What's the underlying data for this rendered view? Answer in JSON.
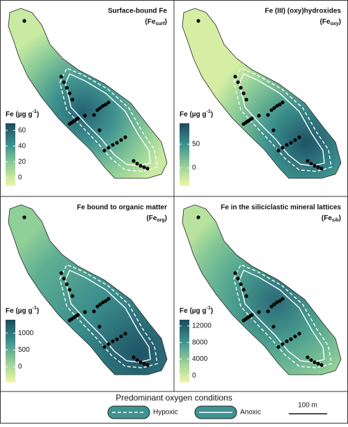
{
  "panels": [
    {
      "title": "Surface-bound Fe",
      "symbol": "(Fe",
      "subscript": "surf",
      "symbol_end": ")",
      "cbar_label": "Fe (µg g",
      "cbar_sup": "-1",
      "cbar_end": ")",
      "cbar_lim": [
        -11,
        69
      ],
      "cbar_ticks": [
        0,
        20,
        40,
        60
      ]
    },
    {
      "title": "Fe (III) (oxy)hydroxides",
      "symbol": "(Fe",
      "subscript": "oxy",
      "symbol_end": ")",
      "cbar_label": "Fe (µg g",
      "cbar_sup": "-1",
      "cbar_end": ")",
      "cbar_lim": [
        -38,
        94
      ],
      "cbar_ticks": [
        0,
        50
      ]
    },
    {
      "title": "Fe bound to organic matter",
      "symbol": "(Fe",
      "subscript": "org",
      "symbol_end": ")",
      "cbar_label": "Fe (µg g",
      "cbar_sup": "-1",
      "cbar_end": ")",
      "cbar_lim": [
        -470,
        1400
      ],
      "cbar_ticks": [
        0,
        500,
        1000
      ]
    },
    {
      "title": "Fe in the siliciclastic mineral lattices",
      "symbol": "(Fe",
      "subscript": "sili",
      "symbol_end": ")",
      "cbar_label": "Fe (µg g",
      "cbar_sup": "-1",
      "cbar_end": ")",
      "cbar_lim": [
        -1650,
        13500
      ],
      "cbar_ticks": [
        0,
        4000,
        8000,
        12000
      ]
    }
  ],
  "legend": {
    "title": "Predominant oxygen conditions",
    "entries": [
      "Hypoxic",
      "Anoxic"
    ],
    "scale_bar": "100 m"
  }
}
